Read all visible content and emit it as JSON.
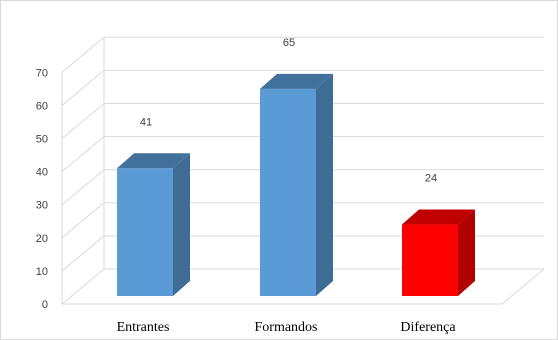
{
  "chart_data": {
    "type": "bar",
    "subtype": "3d-column",
    "categories": [
      "Entrantes",
      "Formandos",
      "Diferença"
    ],
    "values": [
      41,
      65,
      24
    ],
    "data_labels": [
      "41",
      "65",
      "24"
    ],
    "colors": [
      "#5b9bd5",
      "#5b9bd5",
      "#ff0000"
    ],
    "side_colors": [
      "#3e6c95",
      "#3e6c95",
      "#b00000"
    ],
    "top_colors": [
      "#41719c",
      "#41719c",
      "#c00000"
    ],
    "y_ticks": [
      "0",
      "10",
      "20",
      "30",
      "40",
      "50",
      "60",
      "70"
    ],
    "ylim": [
      0,
      70
    ],
    "grid": true,
    "legend": "none",
    "title": "",
    "xlabel": "",
    "ylabel": ""
  }
}
